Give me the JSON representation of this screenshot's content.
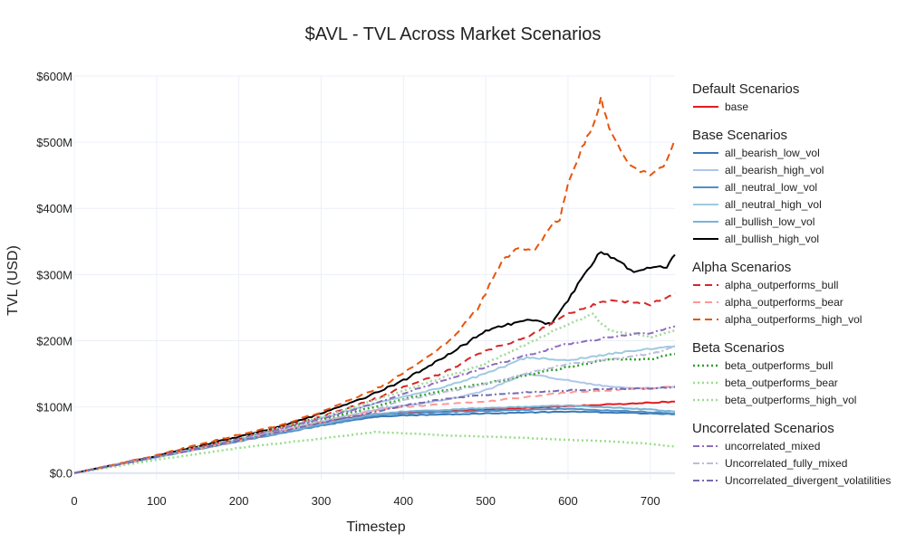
{
  "chart_data": {
    "type": "line",
    "title": "$AVL - TVL Across Market Scenarios",
    "xlabel": "Timestep",
    "ylabel": "TVL (USD)",
    "xlim": [
      0,
      730
    ],
    "ylim": [
      -10,
      600
    ],
    "xticks": [
      0,
      100,
      200,
      300,
      400,
      500,
      600,
      700
    ],
    "yticks": [
      0,
      100,
      200,
      300,
      400,
      500,
      600
    ],
    "ytick_labels": [
      "$0.0",
      "$100M",
      "$200M",
      "$300M",
      "$400M",
      "$500M",
      "$600M"
    ],
    "grid": true,
    "legend_position": "right",
    "groups": [
      {
        "title": "Default Scenarios",
        "series": [
          {
            "name": "base",
            "color": "#e41a1c",
            "dash": "solid",
            "width": 2,
            "x": [
              0,
              100,
              200,
              300,
              365,
              400,
              500,
              600,
              730
            ],
            "y": [
              0,
              25,
              50,
              77,
              89,
              91,
              96,
              101,
              108
            ]
          }
        ]
      },
      {
        "title": "Base Scenarios",
        "series": [
          {
            "name": "all_bearish_low_vol",
            "color": "#3a78b5",
            "dash": "solid",
            "width": 2,
            "x": [
              0,
              100,
              200,
              300,
              365,
              400,
              500,
              600,
              700,
              730
            ],
            "y": [
              0,
              24,
              48,
              72,
              85,
              87,
              90,
              93,
              90,
              89
            ]
          },
          {
            "name": "all_bearish_high_vol",
            "color": "#aec7e8",
            "dash": "solid",
            "width": 2,
            "x": [
              0,
              100,
              200,
              300,
              365,
              400,
              450,
              500,
              550,
              600,
              650,
              700,
              730
            ],
            "y": [
              0,
              24,
              49,
              78,
              95,
              102,
              110,
              125,
              150,
              140,
              130,
              128,
              130
            ]
          },
          {
            "name": "all_neutral_low_vol",
            "color": "#4f90c6",
            "dash": "solid",
            "width": 2,
            "x": [
              0,
              100,
              200,
              300,
              365,
              400,
              500,
              600,
              700,
              730
            ],
            "y": [
              0,
              24,
              48,
              72,
              87,
              90,
              94,
              97,
              92,
              90
            ]
          },
          {
            "name": "all_neutral_high_vol",
            "color": "#9ecae1",
            "dash": "solid",
            "width": 2,
            "x": [
              0,
              100,
              200,
              300,
              365,
              400,
              450,
              500,
              550,
              600,
              650,
              700,
              730
            ],
            "y": [
              0,
              25,
              51,
              83,
              105,
              115,
              130,
              150,
              175,
              170,
              180,
              188,
              192
            ]
          },
          {
            "name": "all_bullish_low_vol",
            "color": "#7bb3d6",
            "dash": "solid",
            "width": 2,
            "x": [
              0,
              100,
              200,
              300,
              365,
              400,
              500,
              600,
              700,
              730
            ],
            "y": [
              0,
              24,
              49,
              74,
              89,
              93,
              98,
              102,
              96,
              93
            ]
          },
          {
            "name": "all_bullish_high_vol",
            "color": "#000000",
            "dash": "solid",
            "width": 2,
            "x": [
              0,
              100,
              200,
              250,
              300,
              350,
              400,
              450,
              500,
              550,
              580,
              600,
              620,
              640,
              660,
              680,
              700,
              720,
              730
            ],
            "y": [
              0,
              26,
              55,
              70,
              90,
              112,
              140,
              175,
              215,
              232,
              225,
              262,
              300,
              335,
              320,
              305,
              310,
              312,
              330
            ]
          }
        ]
      },
      {
        "title": "Alpha Scenarios",
        "series": [
          {
            "name": "alpha_outperforms_bull",
            "color": "#d62728",
            "dash": "8,5",
            "width": 2,
            "x": [
              0,
              100,
              200,
              300,
              365,
              400,
              450,
              500,
              550,
              600,
              650,
              700,
              730
            ],
            "y": [
              0,
              25,
              52,
              85,
              112,
              130,
              152,
              185,
              205,
              240,
              262,
              255,
              272
            ]
          },
          {
            "name": "alpha_outperforms_bear",
            "color": "#ff9896",
            "dash": "8,5",
            "width": 2,
            "x": [
              0,
              100,
              200,
              300,
              365,
              400,
              450,
              500,
              550,
              600,
              650,
              700,
              730
            ],
            "y": [
              0,
              24,
              49,
              77,
              95,
              100,
              104,
              108,
              115,
              122,
              125,
              128,
              132
            ]
          },
          {
            "name": "alpha_outperforms_high_vol",
            "color": "#e6550d",
            "dash": "8,5",
            "width": 2,
            "x": [
              0,
              100,
              200,
              250,
              300,
              350,
              380,
              400,
              430,
              460,
              490,
              500,
              520,
              540,
              560,
              580,
              590,
              600,
              610,
              620,
              630,
              640,
              650,
              660,
              680,
              700,
              720,
              730
            ],
            "y": [
              0,
              27,
              58,
              72,
              92,
              118,
              135,
              152,
              175,
              205,
              248,
              272,
              320,
              340,
              335,
              375,
              385,
              440,
              470,
              500,
              525,
              565,
              520,
              495,
              460,
              450,
              470,
              505
            ]
          }
        ]
      },
      {
        "title": "Beta Scenarios",
        "series": [
          {
            "name": "beta_outperforms_bull",
            "color": "#2ca02c",
            "dash": "2,3",
            "width": 2.5,
            "x": [
              0,
              100,
              200,
              300,
              365,
              400,
              450,
              500,
              550,
              600,
              650,
              700,
              730
            ],
            "y": [
              0,
              24,
              50,
              80,
              100,
              112,
              125,
              135,
              148,
              160,
              172,
              172,
              180
            ]
          },
          {
            "name": "beta_outperforms_bear",
            "color": "#98df8a",
            "dash": "2,3",
            "width": 2.5,
            "x": [
              0,
              100,
              200,
              300,
              365,
              400,
              450,
              500,
              550,
              600,
              650,
              700,
              730
            ],
            "y": [
              0,
              20,
              38,
              52,
              62,
              60,
              57,
              55,
              53,
              50,
              48,
              44,
              40
            ]
          },
          {
            "name": "beta_outperforms_high_vol",
            "color": "#a1d99b",
            "dash": "2,3",
            "width": 2.5,
            "x": [
              0,
              100,
              200,
              300,
              365,
              400,
              450,
              500,
              550,
              600,
              630,
              650,
              680,
              700,
              730
            ],
            "y": [
              0,
              25,
              52,
              85,
              110,
              125,
              145,
              165,
              195,
              225,
              240,
              215,
              210,
              205,
              215
            ]
          }
        ]
      },
      {
        "title": "Uncorrelated Scenarios",
        "series": [
          {
            "name": "uncorrelated_mixed",
            "color": "#8e6bbf",
            "dash": "7,3,2,3",
            "width": 2,
            "x": [
              0,
              100,
              200,
              300,
              365,
              400,
              450,
              500,
              550,
              600,
              650,
              700,
              730
            ],
            "y": [
              0,
              25,
              51,
              82,
              105,
              120,
              140,
              160,
              178,
              195,
              205,
              212,
              222
            ]
          },
          {
            "name": "Uncorrelated_fully_mixed",
            "color": "#bcbddc",
            "dash": "7,3,2,3",
            "width": 2,
            "x": [
              0,
              100,
              200,
              300,
              365,
              400,
              450,
              500,
              550,
              600,
              650,
              700,
              730
            ],
            "y": [
              0,
              24,
              50,
              78,
              96,
              110,
              122,
              135,
              150,
              165,
              172,
              180,
              190
            ]
          },
          {
            "name": "Uncorrelated_divergent_volatilities",
            "color": "#756bb1",
            "dash": "7,3,2,3",
            "width": 2,
            "x": [
              0,
              100,
              200,
              300,
              365,
              400,
              450,
              500,
              550,
              600,
              650,
              700,
              730
            ],
            "y": [
              0,
              24,
              49,
              76,
              92,
              102,
              112,
              118,
              122,
              125,
              127,
              128,
              130
            ]
          }
        ]
      }
    ]
  }
}
